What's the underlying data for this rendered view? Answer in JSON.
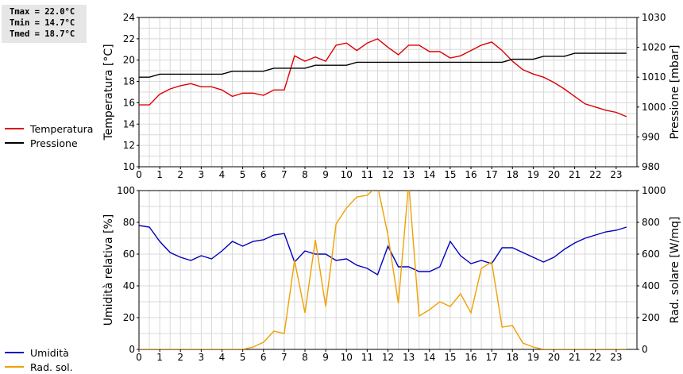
{
  "stats": {
    "tmax": "Tmax = 22.0°C",
    "tmin": "Tmin = 14.7°C",
    "tmed": "Tmed = 18.7°C"
  },
  "colors": {
    "temperature": "#dd0000",
    "pressure": "#000000",
    "humidity": "#0000bb",
    "radiation": "#f0a000",
    "grid": "#d8d8d8"
  },
  "chart_data": [
    {
      "type": "line",
      "ylabel": "Temperatura [°C]",
      "y2label": "Pressione [mbar]",
      "xlim": [
        0,
        24
      ],
      "xticks": [
        0,
        1,
        2,
        3,
        4,
        5,
        6,
        7,
        8,
        9,
        10,
        11,
        12,
        13,
        14,
        15,
        16,
        17,
        18,
        19,
        20,
        21,
        22,
        23
      ],
      "ylim": [
        10,
        24
      ],
      "yticks": [
        10,
        12,
        14,
        16,
        18,
        20,
        22,
        24
      ],
      "y2lim": [
        980,
        1030
      ],
      "y2ticks": [
        980,
        990,
        1000,
        1010,
        1020,
        1030
      ],
      "legend": [
        {
          "name": "Temperatura",
          "color": "#dd0000"
        },
        {
          "name": "Pressione",
          "color": "#000000"
        }
      ],
      "series": [
        {
          "name": "Temperatura",
          "axis": "left",
          "color": "#dd0000",
          "x": [
            0,
            0.5,
            1,
            1.5,
            2,
            2.5,
            3,
            3.5,
            4,
            4.5,
            5,
            5.5,
            6,
            6.5,
            7,
            7.5,
            8,
            8.5,
            9,
            9.5,
            10,
            10.5,
            11,
            11.5,
            12,
            12.5,
            13,
            13.5,
            14,
            14.5,
            15,
            15.5,
            16,
            16.5,
            17,
            17.5,
            18,
            18.5,
            19,
            19.5,
            20,
            20.5,
            21,
            21.5,
            22,
            22.5,
            23,
            23.5
          ],
          "values": [
            15.8,
            15.8,
            16.8,
            17.3,
            17.6,
            17.8,
            17.5,
            17.5,
            17.2,
            16.6,
            16.9,
            16.9,
            16.7,
            17.2,
            17.2,
            20.4,
            19.9,
            20.3,
            19.9,
            21.4,
            21.6,
            20.9,
            21.6,
            22.0,
            21.2,
            20.5,
            21.4,
            21.4,
            20.8,
            20.8,
            20.2,
            20.4,
            20.9,
            21.4,
            21.7,
            20.9,
            19.9,
            19.1,
            18.7,
            18.4,
            17.9,
            17.3,
            16.6,
            15.9,
            15.6,
            15.3,
            15.1,
            14.7
          ]
        },
        {
          "name": "Pressione",
          "axis": "right",
          "color": "#000000",
          "x": [
            0,
            0.5,
            1,
            1.5,
            2,
            2.5,
            3,
            3.5,
            4,
            4.5,
            5,
            5.5,
            6,
            6.5,
            7,
            7.5,
            8,
            8.5,
            9,
            9.5,
            10,
            10.5,
            11,
            11.5,
            12,
            12.5,
            13,
            13.5,
            14,
            14.5,
            15,
            15.5,
            16,
            16.5,
            17,
            17.5,
            18,
            18.5,
            19,
            19.5,
            20,
            20.5,
            21,
            21.5,
            22,
            22.5,
            23,
            23.5
          ],
          "values": [
            1010,
            1010,
            1011,
            1011,
            1011,
            1011,
            1011,
            1011,
            1011,
            1012,
            1012,
            1012,
            1012,
            1013,
            1013,
            1013,
            1013,
            1014,
            1014,
            1014,
            1014,
            1015,
            1015,
            1015,
            1015,
            1015,
            1015,
            1015,
            1015,
            1015,
            1015,
            1015,
            1015,
            1015,
            1015,
            1015,
            1016,
            1016,
            1016,
            1017,
            1017,
            1017,
            1018,
            1018,
            1018,
            1018,
            1018,
            1018
          ]
        }
      ]
    },
    {
      "type": "line",
      "ylabel": "Umidità relativa [%]",
      "y2label": "Rad. solare [W/mq]",
      "xlim": [
        0,
        24
      ],
      "xticks": [
        0,
        1,
        2,
        3,
        4,
        5,
        6,
        7,
        8,
        9,
        10,
        11,
        12,
        13,
        14,
        15,
        16,
        17,
        18,
        19,
        20,
        21,
        22,
        23
      ],
      "ylim": [
        0,
        100
      ],
      "yticks": [
        0,
        20,
        40,
        60,
        80,
        100
      ],
      "y2lim": [
        0,
        1000
      ],
      "y2ticks": [
        0,
        200,
        400,
        600,
        800,
        1000
      ],
      "legend": [
        {
          "name": "Umidità",
          "color": "#0000bb"
        },
        {
          "name": "Rad. sol.",
          "color": "#f0a000"
        }
      ],
      "series": [
        {
          "name": "Umidità",
          "axis": "left",
          "color": "#0000bb",
          "x": [
            0,
            0.5,
            1,
            1.5,
            2,
            2.5,
            3,
            3.5,
            4,
            4.5,
            5,
            5.5,
            6,
            6.5,
            7,
            7.5,
            8,
            8.5,
            9,
            9.5,
            10,
            10.5,
            11,
            11.5,
            12,
            12.5,
            13,
            13.5,
            14,
            14.5,
            15,
            15.5,
            16,
            16.5,
            17,
            17.5,
            18,
            18.5,
            19,
            19.5,
            20,
            20.5,
            21,
            21.5,
            22,
            22.5,
            23,
            23.5
          ],
          "values": [
            78,
            77,
            68,
            61,
            58,
            56,
            59,
            57,
            62,
            68,
            65,
            68,
            69,
            72,
            73,
            55,
            62,
            60,
            60,
            56,
            57,
            53,
            51,
            47,
            65,
            52,
            52,
            49,
            49,
            52,
            68,
            59,
            54,
            56,
            54,
            64,
            64,
            61,
            58,
            55,
            58,
            63,
            67,
            70,
            72,
            74,
            75,
            77
          ]
        },
        {
          "name": "Rad. sol.",
          "axis": "right",
          "color": "#f0a000",
          "x": [
            0,
            0.5,
            1,
            1.5,
            2,
            2.5,
            3,
            3.5,
            4,
            4.5,
            5,
            5.5,
            6,
            6.5,
            7,
            7.5,
            8,
            8.5,
            9,
            9.5,
            10,
            10.5,
            11,
            11.5,
            12,
            12.5,
            13,
            13.5,
            14,
            14.5,
            15,
            15.5,
            16,
            16.5,
            17,
            17.5,
            18,
            18.5,
            19,
            19.5,
            20,
            20.5,
            21,
            21.5,
            22,
            22.5,
            23,
            23.5
          ],
          "values": [
            0,
            0,
            0,
            0,
            0,
            0,
            0,
            0,
            0,
            0,
            0,
            15,
            45,
            115,
            100,
            560,
            230,
            690,
            270,
            790,
            890,
            960,
            970,
            1030,
            720,
            290,
            1050,
            210,
            250,
            300,
            270,
            350,
            230,
            510,
            550,
            140,
            150,
            40,
            15,
            0,
            0,
            0,
            0,
            0,
            0,
            0,
            0,
            0
          ]
        }
      ]
    }
  ]
}
